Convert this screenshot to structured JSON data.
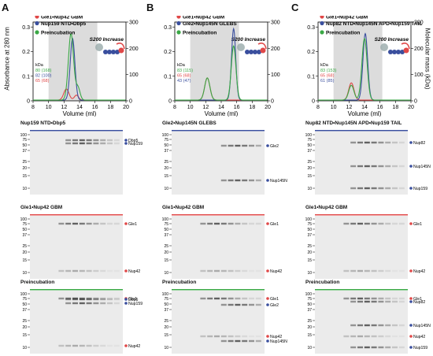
{
  "figure": {
    "yaxis_left": "Absorbance at 280 nm",
    "yaxis_right": "Molecular mass (kDa)",
    "xlabel": "Volume (ml)",
    "kda_unit": "kDa"
  },
  "chart_data": [
    {
      "panel": "A",
      "type": "line",
      "legend": [
        "Gle1•Nup42 GBM",
        "Nup159 NTD•Dbp5",
        "Preincubation"
      ],
      "column": "S200 Increase",
      "x_ticks": [
        "8",
        "10",
        "12",
        "14",
        "16",
        "18",
        "20"
      ],
      "y_ticks_left": [
        "0",
        "0.1",
        "0.2",
        "0.3"
      ],
      "y_ticks_right": [
        "0",
        "100",
        "200",
        "300"
      ],
      "mass_labels": [
        {
          "text": "80 (168)",
          "color": "#3aa845"
        },
        {
          "text": "82 (100)",
          "color": "#3a4f9e"
        },
        {
          "text": "65 (68)",
          "color": "#e04848"
        }
      ],
      "xlim": [
        8,
        20
      ],
      "ylim": [
        0,
        0.32
      ],
      "series": [
        {
          "name": "Gle1•Nup42 GBM",
          "color": "#e04848",
          "peaks": [
            [
              12.3,
              0.045,
              0.5
            ],
            [
              13.6,
              0.02,
              0.4
            ]
          ]
        },
        {
          "name": "Nup159 NTD•Dbp5",
          "color": "#3a4f9e",
          "peaks": [
            [
              13.1,
              0.25,
              0.45
            ]
          ]
        },
        {
          "name": "Preincubation",
          "color": "#3aa845",
          "peaks": [
            [
              12.9,
              0.27,
              0.5
            ],
            [
              13.8,
              0.05,
              0.4
            ]
          ]
        }
      ]
    },
    {
      "panel": "B",
      "type": "line",
      "legend": [
        "Gle1•Nup42 GBM",
        "Gle2•Nup145N GLEBS",
        "Preincubation"
      ],
      "column": "S200 Increase",
      "x_ticks": [
        "8",
        "10",
        "12",
        "14",
        "16",
        "18",
        "20"
      ],
      "y_ticks_left": [
        "0",
        "0.1",
        "0.2",
        "0.3"
      ],
      "y_ticks_right": [
        "0",
        "100",
        "200",
        "300"
      ],
      "mass_labels": [
        {
          "text": "83 (115)",
          "color": "#3aa845"
        },
        {
          "text": "65 (68)",
          "color": "#e04848"
        },
        {
          "text": "43 (47)",
          "color": "#3a4f9e"
        }
      ],
      "xlim": [
        8,
        20
      ],
      "ylim": [
        0,
        0.32
      ],
      "series": [
        {
          "name": "Gle1•Nup42 GBM",
          "color": "#e04848",
          "peaks": [
            [
              12.2,
              0.09,
              0.5
            ]
          ]
        },
        {
          "name": "Gle2•Nup145N GLEBS",
          "color": "#3a4f9e",
          "peaks": [
            [
              15.6,
              0.29,
              0.4
            ]
          ]
        },
        {
          "name": "Preincubation",
          "color": "#3aa845",
          "peaks": [
            [
              12.2,
              0.09,
              0.5
            ],
            [
              15.6,
              0.22,
              0.45
            ]
          ]
        }
      ]
    },
    {
      "panel": "C",
      "type": "line",
      "legend": [
        "Gle1•Nup42 GBM",
        "Nup82 NTD•Nup145N APD•Nup159 TAIL",
        "Preincubation"
      ],
      "column": "S200 Increase",
      "x_ticks": [
        "8",
        "10",
        "12",
        "14",
        "16",
        "18",
        "20"
      ],
      "y_ticks_left": [
        "0",
        "0.1",
        "0.2",
        "0.3"
      ],
      "y_ticks_right": [
        "0",
        "100",
        "200",
        "300"
      ],
      "mass_labels": [
        {
          "text": "83 (153)",
          "color": "#3aa845"
        },
        {
          "text": "65 (68)",
          "color": "#e04848"
        },
        {
          "text": "61 (85)",
          "color": "#3a4f9e"
        }
      ],
      "xlim": [
        8,
        20
      ],
      "ylim": [
        0,
        0.32
      ],
      "series": [
        {
          "name": "Gle1•Nup42 GBM",
          "color": "#e04848",
          "peaks": [
            [
              12.3,
              0.07,
              0.5
            ]
          ]
        },
        {
          "name": "Nup82 NTD•Nup145N APD•Nup159 TAIL",
          "color": "#3a4f9e",
          "peaks": [
            [
              14.1,
              0.27,
              0.45
            ]
          ]
        },
        {
          "name": "Preincubation",
          "color": "#3aa845",
          "peaks": [
            [
              12.3,
              0.06,
              0.5
            ],
            [
              14.0,
              0.25,
              0.5
            ]
          ]
        }
      ]
    }
  ],
  "gels": {
    "A": [
      {
        "title": "Nup159 NTD•Dbp5",
        "color": "#3a4f9e",
        "kda": [
          "100",
          "75",
          "50",
          "37",
          "25",
          "20",
          "15",
          "10"
        ],
        "bands": [
          "Dbp5",
          "Nup159"
        ]
      },
      {
        "title": "Gle1•Nup42 GBM",
        "color": "#e04848",
        "kda": [
          "100",
          "75",
          "50",
          "37",
          "25",
          "20",
          "15",
          "10"
        ],
        "bands": [
          "Gle1",
          "Nup42"
        ]
      },
      {
        "title": "Preincubation",
        "color": "#3aa845",
        "kda": [
          "100",
          "75",
          "50",
          "37",
          "25",
          "20",
          "15",
          "10"
        ],
        "bands": [
          "Gle1",
          "Dbp5",
          "Nup159",
          "Nup42"
        ]
      }
    ],
    "B": [
      {
        "title": "Gle2•Nup145N GLEBS",
        "color": "#3a4f9e",
        "kda": [
          "100",
          "75",
          "50",
          "37",
          "25",
          "20",
          "15",
          "10"
        ],
        "bands": [
          "Gle2",
          "Nup145N"
        ]
      },
      {
        "title": "Gle1•Nup42 GBM",
        "color": "#e04848",
        "kda": [
          "100",
          "75",
          "50",
          "37",
          "25",
          "20",
          "15",
          "10"
        ],
        "bands": [
          "Gle1",
          "Nup42"
        ]
      },
      {
        "title": "Preincubation",
        "color": "#3aa845",
        "kda": [
          "100",
          "75",
          "50",
          "37",
          "25",
          "20",
          "15",
          "10"
        ],
        "bands": [
          "Gle1",
          "Gle2",
          "Nup42",
          "Nup145N"
        ]
      }
    ],
    "C": [
      {
        "title": "Nup82 NTD•Nup145N APD•Nup159 TAIL",
        "color": "#3a4f9e",
        "kda": [
          "100",
          "75",
          "50",
          "37",
          "25",
          "20",
          "15",
          "10"
        ],
        "bands": [
          "Nup82",
          "Nup145N",
          "Nup159"
        ]
      },
      {
        "title": "Gle1•Nup42 GBM",
        "color": "#e04848",
        "kda": [
          "100",
          "75",
          "50",
          "37",
          "25",
          "20",
          "15",
          "10"
        ],
        "bands": [
          "Gle1",
          "Nup42"
        ]
      },
      {
        "title": "Preincubation",
        "color": "#3aa845",
        "kda": [
          "100",
          "75",
          "50",
          "37",
          "25",
          "20",
          "15",
          "10"
        ],
        "bands": [
          "Gle1",
          "Nup82",
          "Nup145N",
          "Nup42",
          "Nup159"
        ]
      }
    ]
  }
}
